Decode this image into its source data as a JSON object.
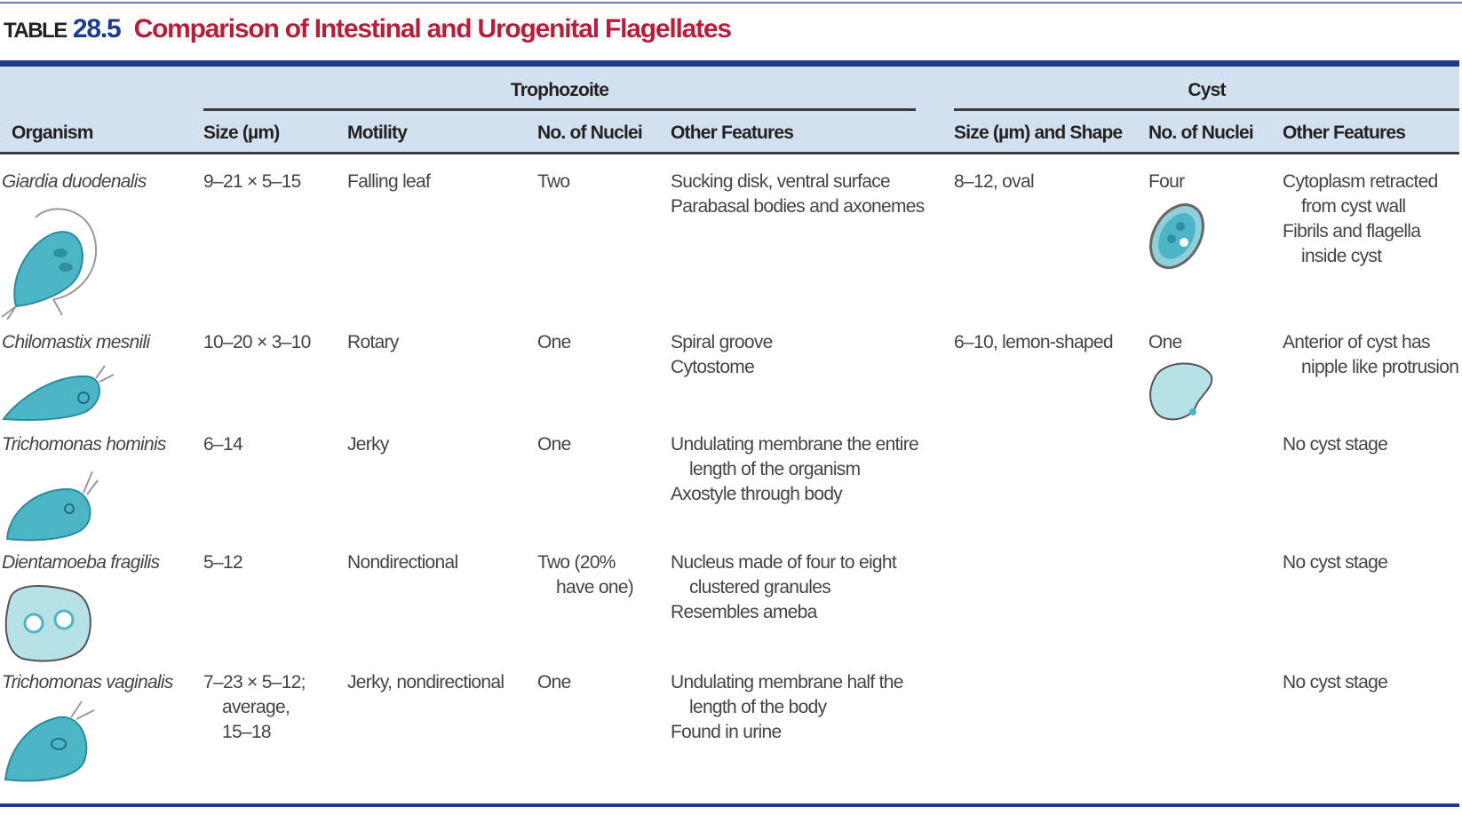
{
  "title": {
    "label": "TABLE",
    "number": "28.5",
    "text": "Comparison of Intestinal and Urogenital Flagellates"
  },
  "header": {
    "groups": [
      "Trophozoite",
      "Cyst"
    ],
    "columns": [
      "Organism",
      "Size (µm)",
      "Motility",
      "No. of Nuclei",
      "Other Features",
      "Size (µm) and Shape",
      "No. of Nuclei",
      "Other Features"
    ]
  },
  "colors": {
    "title_red": "#b4203c",
    "title_blue": "#1e3a8a",
    "header_bg": "#d3e0f0",
    "rule_blue": "#1c3a8c",
    "illustration_teal": "#4db6c6"
  },
  "rows": [
    {
      "organism": "Giardia duodenalis",
      "size": [
        "9–21 × 5–15"
      ],
      "motility": [
        "Falling leaf"
      ],
      "nuclei": [
        "Two"
      ],
      "features": [
        "Sucking disk, ventral surface",
        "Parabasal bodies and axonemes"
      ],
      "cyst_size": [
        "8–12, oval"
      ],
      "cyst_nuclei": [
        "Four"
      ],
      "cyst_features": [
        "Cytoplasm retracted\nfrom cyst wall",
        "Fibrils and flagella\ninside cyst"
      ]
    },
    {
      "organism": "Chilomastix mesnili",
      "size": [
        "10–20 × 3–10"
      ],
      "motility": [
        "Rotary"
      ],
      "nuclei": [
        "One"
      ],
      "features": [
        "Spiral groove",
        "Cytostome"
      ],
      "cyst_size": [
        "6–10, lemon-shaped"
      ],
      "cyst_nuclei": [
        "One"
      ],
      "cyst_features": [
        "Anterior of cyst has\nnipple like protrusion"
      ]
    },
    {
      "organism": "Trichomonas hominis",
      "size": [
        "6–14"
      ],
      "motility": [
        "Jerky"
      ],
      "nuclei": [
        "One"
      ],
      "features": [
        "Undulating membrane the entire\nlength of the organism",
        "Axostyle through body"
      ],
      "cyst_size": [],
      "cyst_nuclei": [],
      "cyst_features": [
        "No cyst stage"
      ]
    },
    {
      "organism": "Dientamoeba fragilis",
      "size": [
        "5–12"
      ],
      "motility": [
        "Nondirectional"
      ],
      "nuclei": [
        "Two (20%\nhave one)"
      ],
      "features": [
        "Nucleus made of four to eight\nclustered granules",
        "Resembles ameba"
      ],
      "cyst_size": [],
      "cyst_nuclei": [],
      "cyst_features": [
        "No cyst stage"
      ]
    },
    {
      "organism": "Trichomonas vaginalis",
      "size": [
        "7–23 × 5–12;\naverage,\n15–18"
      ],
      "motility": [
        "Jerky, nondirectional"
      ],
      "nuclei": [
        "One"
      ],
      "features": [
        "Undulating membrane half the\nlength of the body",
        "Found in urine"
      ],
      "cyst_size": [],
      "cyst_nuclei": [],
      "cyst_features": [
        "No cyst stage"
      ]
    }
  ]
}
